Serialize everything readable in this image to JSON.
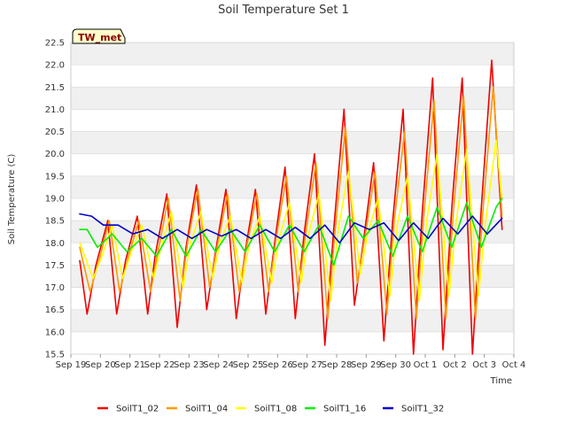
{
  "chart_data": {
    "type": "line",
    "title": "Soil Temperature Set 1",
    "xlabel": "Time",
    "ylabel": "Soil Temperature (C)",
    "badge": "TW_met",
    "ylim": [
      15.5,
      22.5
    ],
    "yticks": [
      15.5,
      16.0,
      16.5,
      17.0,
      17.5,
      18.0,
      18.5,
      19.0,
      19.5,
      20.0,
      20.5,
      21.0,
      21.5,
      22.0,
      22.5
    ],
    "xlim": [
      0,
      15
    ],
    "xticks": [
      "Sep 19",
      "Sep 20",
      "Sep 21",
      "Sep 22",
      "Sep 23",
      "Sep 24",
      "Sep 25",
      "Sep 26",
      "Sep 27",
      "Sep 28",
      "Sep 29",
      "Sep 30",
      "Oct 1",
      "Oct 2",
      "Oct 3",
      "Oct 4"
    ],
    "grid": true,
    "legend_position": "bottom",
    "series": [
      {
        "name": "SoilT1_02",
        "color": "#ee0000",
        "x": [
          0.3,
          0.55,
          0.85,
          1.25,
          1.55,
          1.85,
          2.25,
          2.6,
          2.85,
          3.25,
          3.6,
          3.9,
          4.25,
          4.6,
          4.9,
          5.25,
          5.6,
          5.9,
          6.25,
          6.6,
          6.9,
          7.25,
          7.6,
          7.9,
          8.25,
          8.6,
          8.9,
          9.25,
          9.6,
          9.9,
          10.25,
          10.6,
          10.9,
          11.25,
          11.6,
          11.9,
          12.25,
          12.6,
          12.9,
          13.25,
          13.6,
          13.9,
          14.25,
          14.6
        ],
        "y": [
          17.6,
          16.4,
          17.5,
          18.5,
          16.4,
          17.6,
          18.6,
          16.4,
          17.7,
          19.1,
          16.1,
          17.9,
          19.3,
          16.5,
          17.8,
          19.2,
          16.3,
          17.8,
          19.2,
          16.4,
          18.0,
          19.7,
          16.3,
          18.2,
          20.0,
          15.7,
          18.3,
          21.0,
          16.6,
          18.0,
          19.8,
          15.8,
          18.5,
          21.0,
          15.5,
          18.7,
          21.7,
          15.6,
          18.8,
          21.7,
          15.5,
          18.8,
          22.1,
          18.3
        ]
      },
      {
        "name": "SoilT1_04",
        "color": "#ff9900",
        "x": [
          0.3,
          0.65,
          0.95,
          1.3,
          1.65,
          1.95,
          2.3,
          2.7,
          2.95,
          3.3,
          3.7,
          3.95,
          4.3,
          4.7,
          4.95,
          5.3,
          5.7,
          5.95,
          6.3,
          6.7,
          6.95,
          7.3,
          7.7,
          7.95,
          8.3,
          8.7,
          8.95,
          9.3,
          9.7,
          9.95,
          10.3,
          10.7,
          10.95,
          11.3,
          11.7,
          11.95,
          12.3,
          12.7,
          12.95,
          13.3,
          13.7,
          13.95,
          14.3,
          14.6
        ],
        "y": [
          17.9,
          16.9,
          17.6,
          18.5,
          16.9,
          17.7,
          18.5,
          16.9,
          17.8,
          19.0,
          16.7,
          18.0,
          19.2,
          17.0,
          17.9,
          19.1,
          16.9,
          17.9,
          19.1,
          16.9,
          18.1,
          19.5,
          16.9,
          18.2,
          19.8,
          16.3,
          18.3,
          20.6,
          17.1,
          18.1,
          19.6,
          16.4,
          18.5,
          20.5,
          16.3,
          18.6,
          21.2,
          16.3,
          18.7,
          21.3,
          16.3,
          18.7,
          21.5,
          18.6
        ]
      },
      {
        "name": "SoilT1_08",
        "color": "#ffff00",
        "x": [
          0.3,
          0.75,
          1.05,
          1.4,
          1.75,
          2.05,
          2.4,
          2.8,
          3.05,
          3.4,
          3.8,
          4.05,
          4.4,
          4.8,
          5.05,
          5.4,
          5.8,
          6.05,
          6.4,
          6.8,
          7.05,
          7.4,
          7.8,
          8.05,
          8.4,
          8.8,
          9.05,
          9.4,
          9.8,
          10.05,
          10.4,
          10.8,
          11.05,
          11.4,
          11.8,
          12.05,
          12.4,
          12.8,
          13.05,
          13.4,
          13.8,
          14.05,
          14.4,
          14.6
        ],
        "y": [
          18.0,
          17.2,
          17.7,
          18.4,
          17.2,
          17.8,
          18.4,
          17.2,
          17.9,
          18.7,
          17.0,
          18.0,
          18.7,
          17.2,
          18.0,
          18.6,
          17.1,
          18.0,
          18.6,
          17.1,
          18.1,
          18.9,
          17.1,
          18.2,
          19.1,
          16.7,
          18.3,
          19.6,
          17.3,
          18.2,
          19.0,
          16.8,
          18.4,
          19.5,
          16.7,
          18.5,
          20.0,
          16.8,
          18.5,
          20.1,
          16.8,
          18.5,
          20.3,
          19.0
        ]
      },
      {
        "name": "SoilT1_16",
        "color": "#00ee00",
        "x": [
          0.3,
          0.55,
          0.9,
          1.4,
          1.9,
          2.4,
          2.9,
          3.4,
          3.9,
          4.4,
          4.9,
          5.4,
          5.9,
          6.4,
          6.9,
          7.4,
          7.9,
          8.4,
          8.9,
          9.4,
          9.9,
          10.4,
          10.9,
          11.4,
          11.9,
          12.4,
          12.9,
          13.4,
          13.9,
          14.4,
          14.6
        ],
        "y": [
          18.3,
          18.3,
          17.9,
          18.2,
          17.8,
          18.1,
          17.7,
          18.3,
          17.7,
          18.3,
          17.8,
          18.3,
          17.8,
          18.4,
          17.8,
          18.4,
          17.8,
          18.4,
          17.5,
          18.6,
          18.1,
          18.5,
          17.7,
          18.6,
          17.8,
          18.8,
          17.9,
          18.9,
          17.9,
          18.8,
          19.0
        ]
      },
      {
        "name": "SoilT1_32",
        "color": "#0000cc",
        "x": [
          0.3,
          0.7,
          1.1,
          1.6,
          2.1,
          2.6,
          3.1,
          3.6,
          4.1,
          4.6,
          5.1,
          5.6,
          6.1,
          6.6,
          7.1,
          7.6,
          8.1,
          8.6,
          9.1,
          9.6,
          10.1,
          10.6,
          11.1,
          11.6,
          12.1,
          12.6,
          13.1,
          13.6,
          14.1,
          14.6
        ],
        "y": [
          18.65,
          18.6,
          18.4,
          18.4,
          18.2,
          18.3,
          18.1,
          18.3,
          18.1,
          18.3,
          18.15,
          18.3,
          18.1,
          18.3,
          18.1,
          18.35,
          18.1,
          18.4,
          18.0,
          18.45,
          18.3,
          18.45,
          18.05,
          18.45,
          18.1,
          18.55,
          18.2,
          18.6,
          18.2,
          18.55
        ]
      }
    ]
  }
}
